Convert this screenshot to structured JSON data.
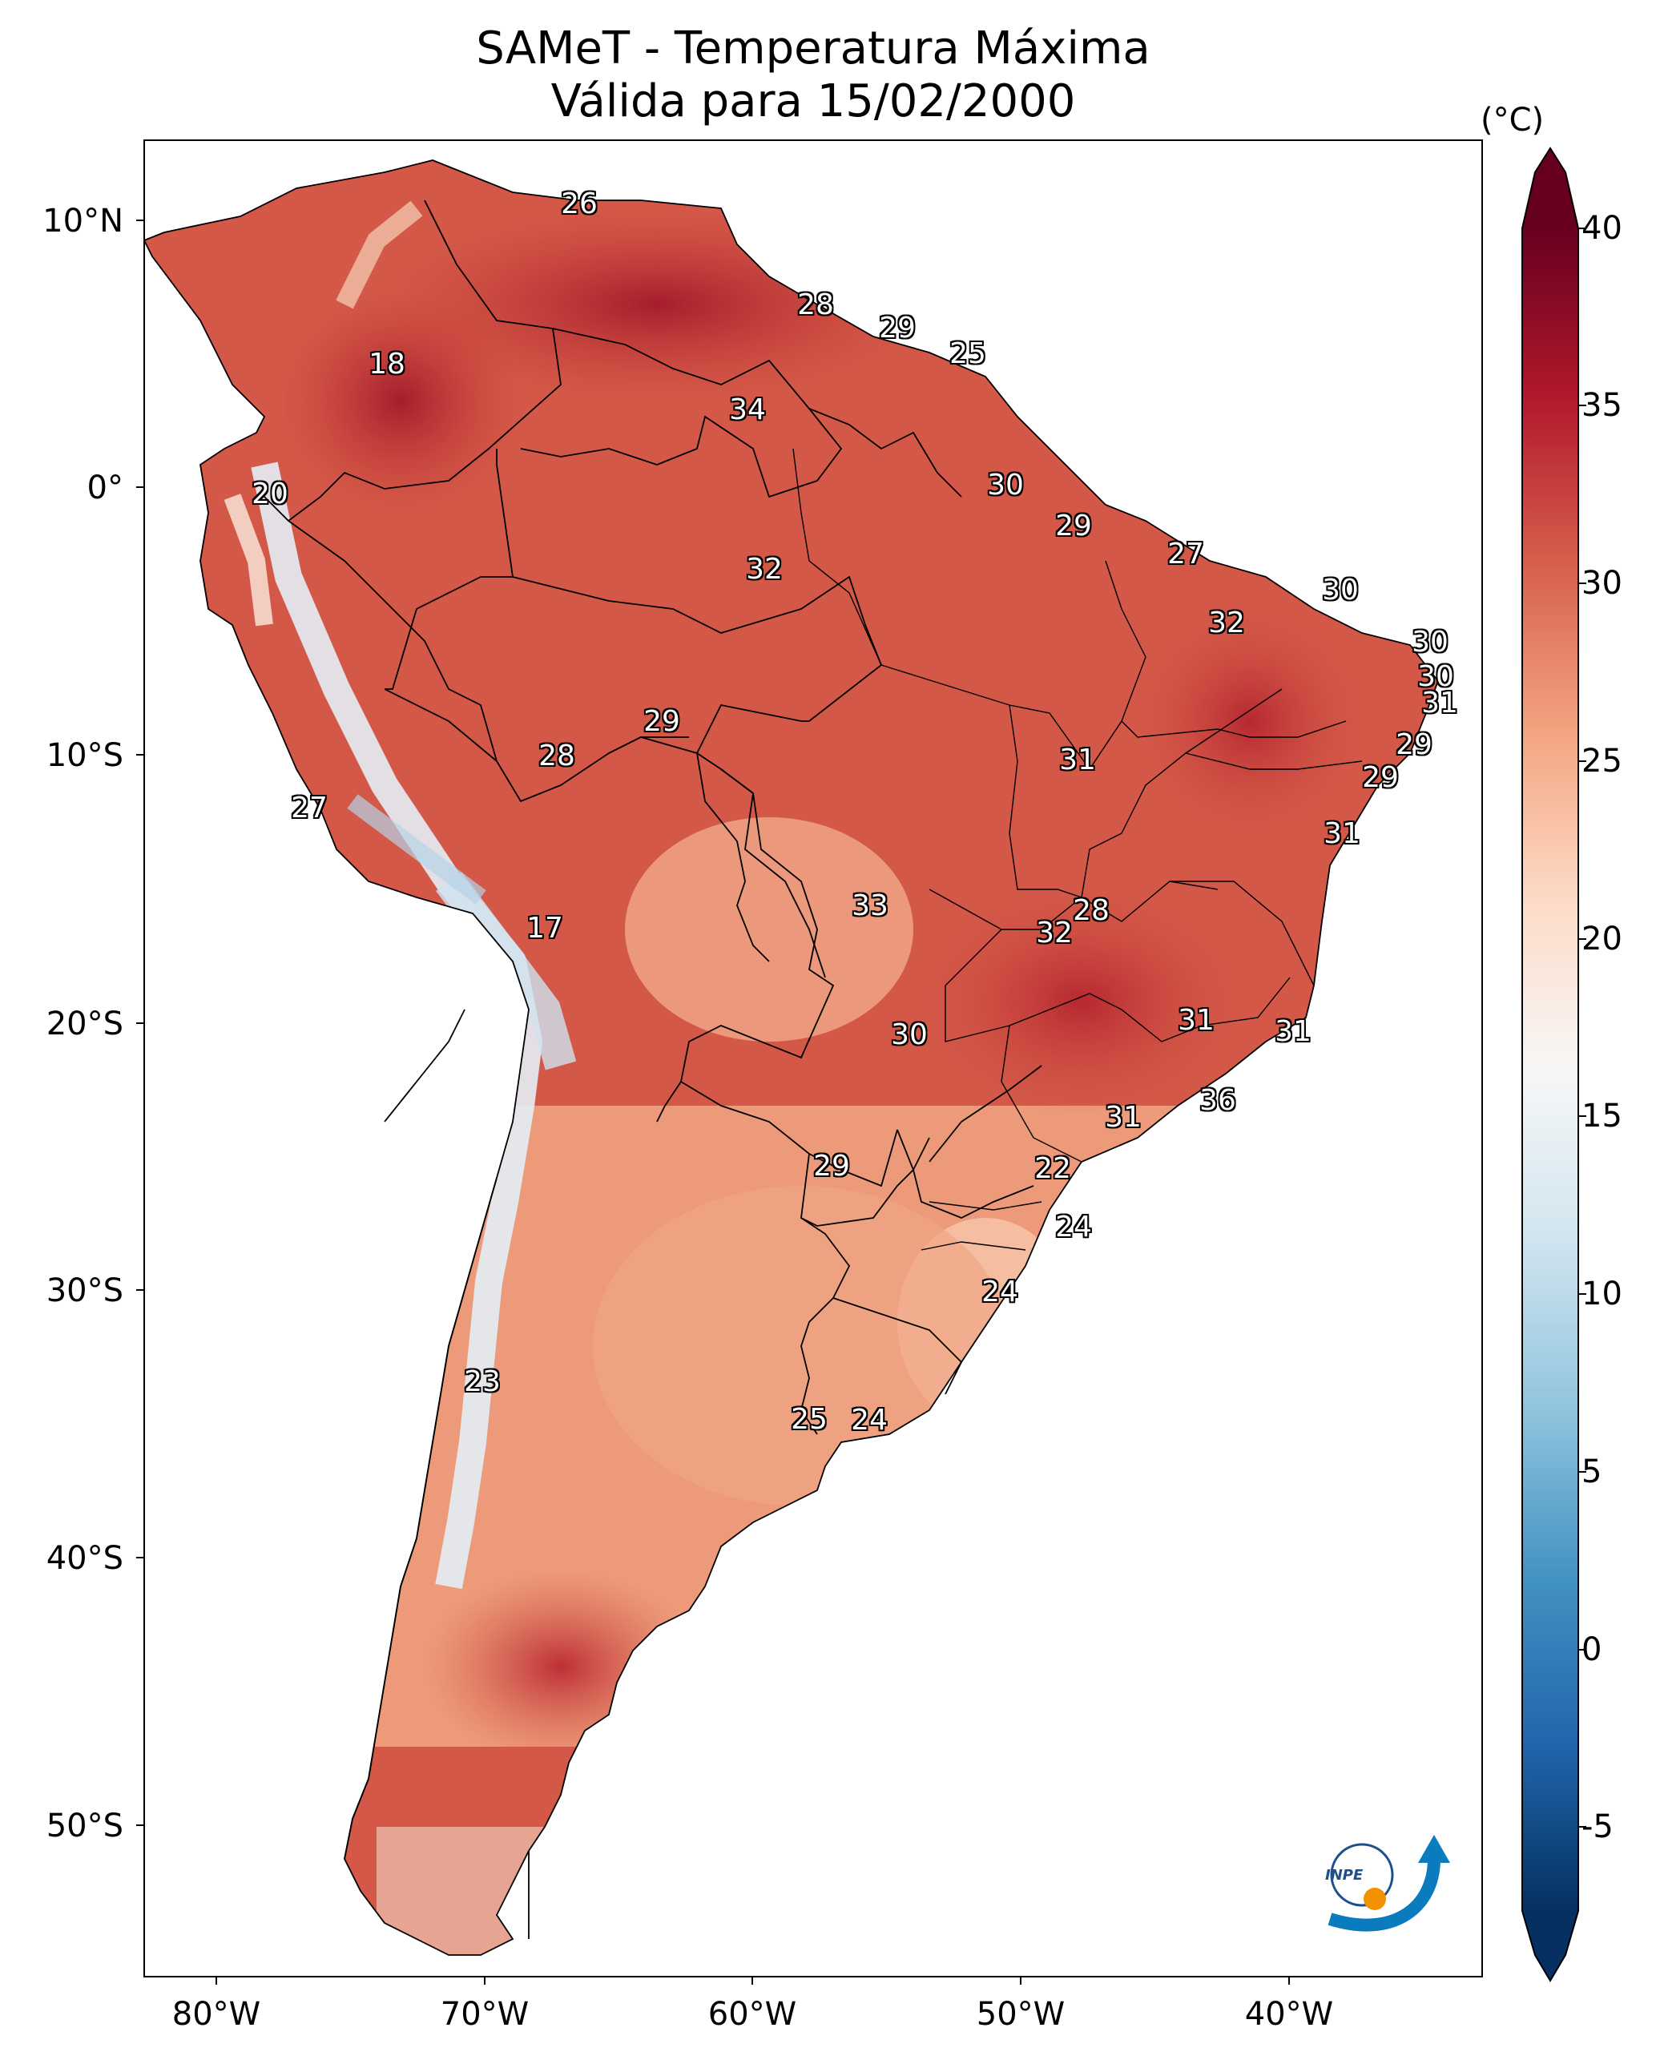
{
  "title": {
    "line1": "SAMeT - Temperatura Máxima",
    "line2": "Válida para 15/02/2000"
  },
  "axes": {
    "y_labels": [
      "10°N",
      "0°",
      "10°S",
      "20°S",
      "30°S",
      "40°S",
      "50°S"
    ],
    "x_labels": [
      "80°W",
      "70°W",
      "60°W",
      "50°W",
      "40°W"
    ]
  },
  "colorbar": {
    "unit": "(°C)",
    "ticks": [
      "40",
      "35",
      "30",
      "25",
      "20",
      "15",
      "10",
      "5",
      "0",
      "-5"
    ],
    "range": [
      -7,
      40
    ],
    "colors": {
      "max": "#67001f",
      "hot": "#b2182b",
      "warm": "#d6604d",
      "mild": "#f4a582",
      "pale": "#fddbc7",
      "neutral": "#f7f7f7",
      "coolpale": "#d1e5f0",
      "cool": "#92c5de",
      "cold": "#4393c3",
      "colder": "#2166ac",
      "min": "#053061"
    }
  },
  "temperature_labels": {
    "t1": "26",
    "t2": "28",
    "t3": "29",
    "t4": "25",
    "t5": "18",
    "t6": "34",
    "t7": "20",
    "t8": "30",
    "t9": "29",
    "t10": "27",
    "t11": "32",
    "t12": "30",
    "t13": "32",
    "t14": "30",
    "t15": "30",
    "t16": "31",
    "t17": "29",
    "t18": "28",
    "t19": "31",
    "t20": "29",
    "t21": "29",
    "t22": "27",
    "t23": "31",
    "t24": "17",
    "t25": "33",
    "t26": "28",
    "t27": "32",
    "t28": "30",
    "t29": "31",
    "t30": "31",
    "t31": "36",
    "t32": "31",
    "t33": "29",
    "t34": "22",
    "t35": "24",
    "t36": "24",
    "t37": "23",
    "t38": "25",
    "t39": "24"
  },
  "logo": {
    "text": "INPE"
  }
}
